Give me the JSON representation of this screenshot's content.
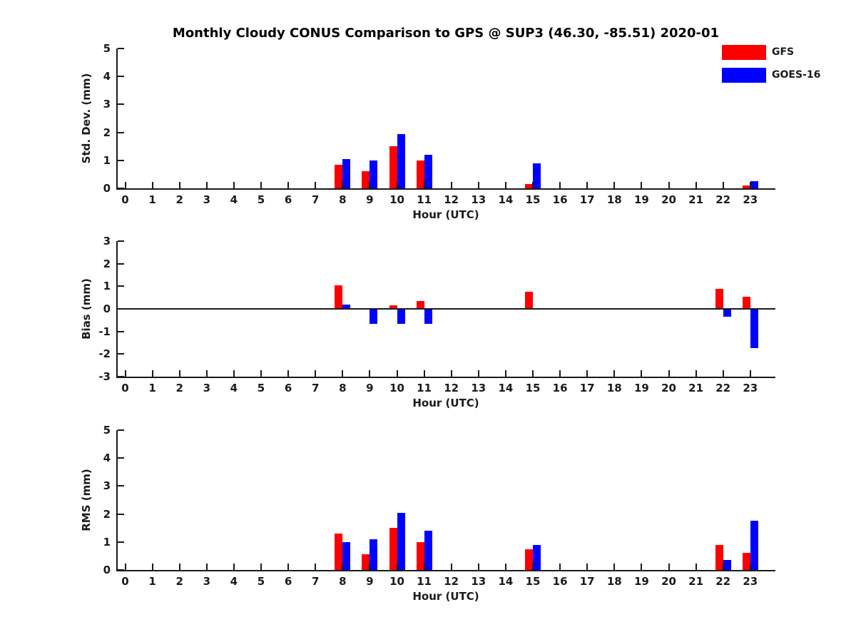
{
  "title": "Monthly Cloudy CONUS Comparison to GPS @ SUP3 (46.30, -85.51) 2020-01",
  "legend": [
    {
      "label": "GFS",
      "color": "#ff0000"
    },
    {
      "label": "GOES-16",
      "color": "#0000ff"
    }
  ],
  "colors": {
    "gfs": "#ff0000",
    "goes16": "#0000ff",
    "axis": "#1a1a1a",
    "background": "#ffffff"
  },
  "chart_data": [
    {
      "type": "bar",
      "panel": "std-dev",
      "ylabel": "Std. Dev. (mm)",
      "xlabel": "Hour (UTC)",
      "ylim": [
        0,
        5
      ],
      "yticks": [
        0,
        1,
        2,
        3,
        4,
        5
      ],
      "grid": false,
      "legend_position": "top-right",
      "categories": [
        0,
        1,
        2,
        3,
        4,
        5,
        6,
        7,
        8,
        9,
        10,
        11,
        12,
        13,
        14,
        15,
        16,
        17,
        18,
        19,
        20,
        21,
        22,
        23
      ],
      "series": [
        {
          "name": "GFS",
          "color": "#ff0000",
          "values": [
            0,
            0,
            0,
            0,
            0,
            0,
            0,
            0,
            0.85,
            0.6,
            1.5,
            1.0,
            0,
            0,
            0,
            0.15,
            0,
            0,
            0,
            0,
            0,
            0,
            0,
            0.1
          ]
        },
        {
          "name": "GOES-16",
          "color": "#0000ff",
          "values": [
            0,
            0,
            0,
            0,
            0,
            0,
            0,
            0,
            1.05,
            1.0,
            1.95,
            1.2,
            0,
            0,
            0,
            0.9,
            0,
            0,
            0,
            0,
            0,
            0,
            0,
            0.25
          ]
        }
      ]
    },
    {
      "type": "bar",
      "panel": "bias",
      "ylabel": "Bias (mm)",
      "xlabel": "Hour (UTC)",
      "ylim": [
        -3,
        3
      ],
      "yticks": [
        -3,
        -2,
        -1,
        0,
        1,
        2,
        3
      ],
      "grid": false,
      "zero_line": true,
      "categories": [
        0,
        1,
        2,
        3,
        4,
        5,
        6,
        7,
        8,
        9,
        10,
        11,
        12,
        13,
        14,
        15,
        16,
        17,
        18,
        19,
        20,
        21,
        22,
        23
      ],
      "series": [
        {
          "name": "GFS",
          "color": "#ff0000",
          "values": [
            0,
            0,
            0,
            0,
            0,
            0,
            0,
            0,
            1.05,
            0,
            0.15,
            0.35,
            0,
            0,
            0,
            0.75,
            0,
            0,
            0,
            0,
            0,
            0,
            0.9,
            0.55
          ]
        },
        {
          "name": "GOES-16",
          "color": "#0000ff",
          "values": [
            0,
            0,
            0,
            0,
            0,
            0,
            0,
            0,
            0.2,
            -0.65,
            -0.65,
            -0.65,
            0,
            0,
            0,
            0,
            0,
            0,
            0,
            0,
            0,
            0,
            -0.35,
            -1.75
          ]
        }
      ]
    },
    {
      "type": "bar",
      "panel": "rms",
      "ylabel": "RMS (mm)",
      "xlabel": "Hour (UTC)",
      "ylim": [
        0,
        5
      ],
      "yticks": [
        0,
        1,
        2,
        3,
        4,
        5
      ],
      "grid": false,
      "categories": [
        0,
        1,
        2,
        3,
        4,
        5,
        6,
        7,
        8,
        9,
        10,
        11,
        12,
        13,
        14,
        15,
        16,
        17,
        18,
        19,
        20,
        21,
        22,
        23
      ],
      "series": [
        {
          "name": "GFS",
          "color": "#ff0000",
          "values": [
            0,
            0,
            0,
            0,
            0,
            0,
            0,
            0,
            1.3,
            0.55,
            1.5,
            1.0,
            0,
            0,
            0,
            0.75,
            0,
            0,
            0,
            0,
            0,
            0,
            0.9,
            0.6
          ]
        },
        {
          "name": "GOES-16",
          "color": "#0000ff",
          "values": [
            0,
            0,
            0,
            0,
            0,
            0,
            0,
            0,
            1.0,
            1.1,
            2.05,
            1.4,
            0,
            0,
            0,
            0.9,
            0,
            0,
            0,
            0,
            0,
            0,
            0.35,
            1.75
          ]
        }
      ]
    }
  ]
}
